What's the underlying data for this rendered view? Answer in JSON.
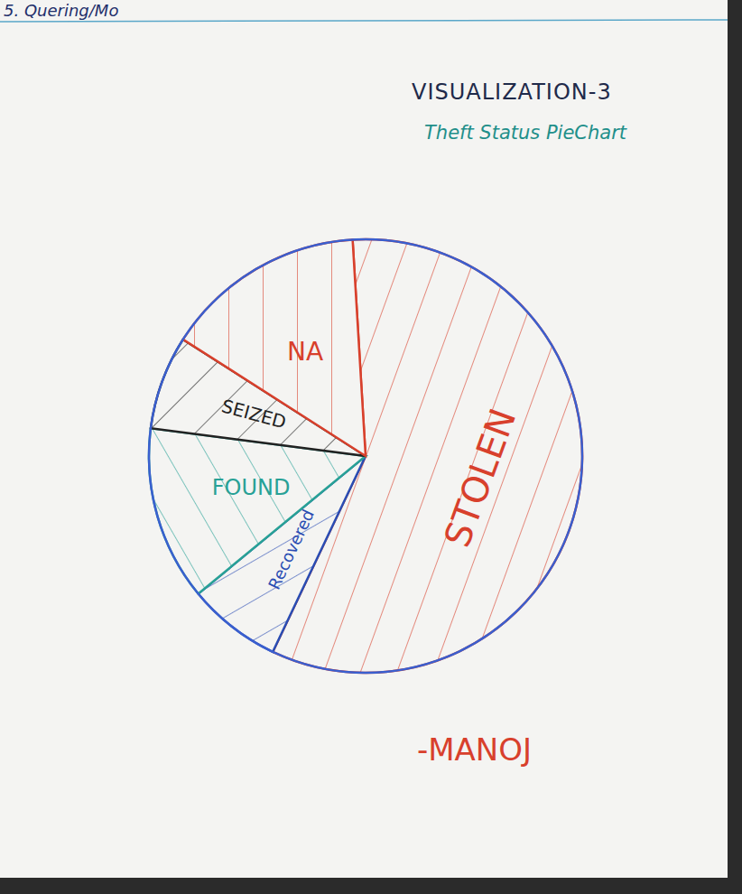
{
  "chart_data": {
    "type": "pie",
    "title": "VISUALIZATION-3",
    "subtitle": "Theft Status PieChart",
    "categories": [
      "STOLEN",
      "Recovered",
      "FOUND",
      "SEIZED",
      "NA"
    ],
    "values": [
      58,
      7,
      13,
      7,
      15
    ],
    "colors": [
      "#d8402c",
      "#2a4db3",
      "#28a196",
      "#222222",
      "#d8402c"
    ],
    "annotations": [
      "5. Quering/Mo",
      "-MANOJ"
    ]
  }
}
